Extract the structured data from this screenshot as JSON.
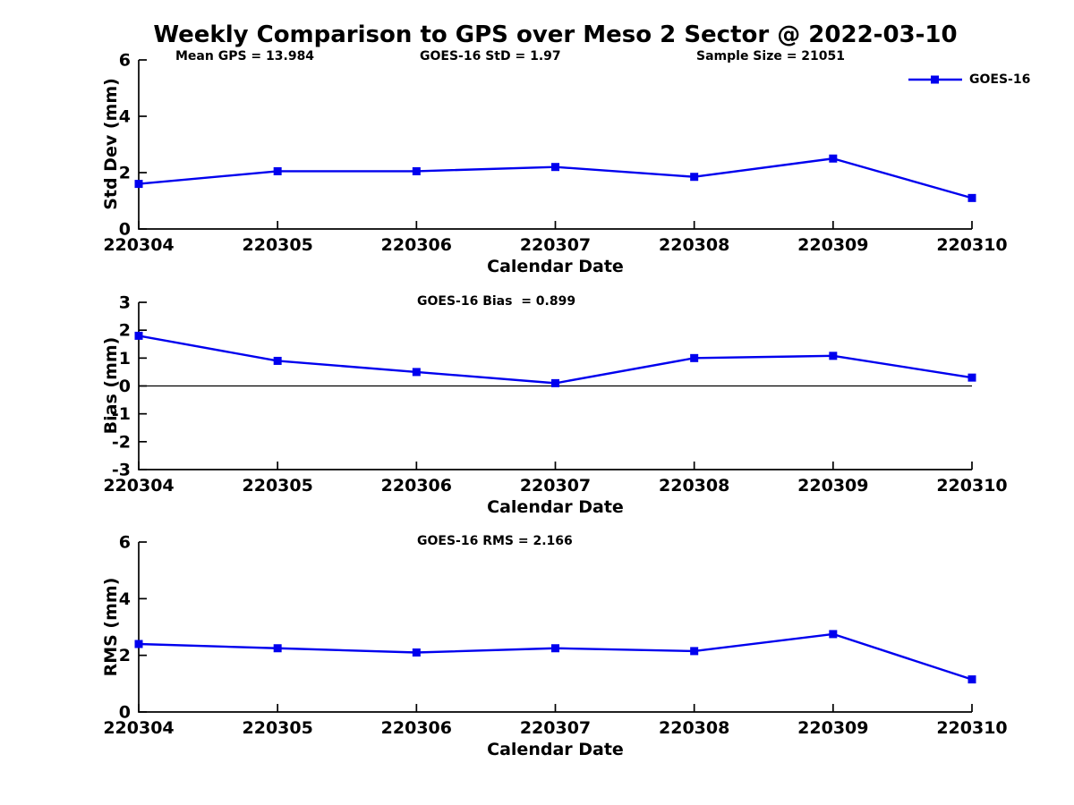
{
  "title": "Weekly Comparison to GPS over Meso 2 Sector @ 2022-03-10",
  "legend": {
    "label": "GOES-16",
    "color": "#0000ee"
  },
  "chart_data": [
    {
      "id": "std-dev",
      "type": "line",
      "series_name": "GOES-16",
      "categories": [
        "220304",
        "220305",
        "220306",
        "220307",
        "220308",
        "220309",
        "220310"
      ],
      "values": [
        1.6,
        2.05,
        2.05,
        2.2,
        1.85,
        2.5,
        1.1
      ],
      "xlabel": "Calendar Date",
      "ylabel": "Std Dev (mm)",
      "ylim": [
        0,
        6
      ],
      "yticks": [
        0,
        2,
        4,
        6
      ],
      "zero_line": false,
      "grid": false,
      "line_color": "#0000ee",
      "marker": "square",
      "legend_position": "top-right",
      "annotations": [
        "Mean GPS = 13.984",
        "GOES-16 StD = 1.97",
        "Sample Size = 21051"
      ]
    },
    {
      "id": "bias",
      "type": "line",
      "series_name": "GOES-16",
      "categories": [
        "220304",
        "220305",
        "220306",
        "220307",
        "220308",
        "220309",
        "220310"
      ],
      "values": [
        1.8,
        0.9,
        0.5,
        0.1,
        1.0,
        1.08,
        0.3
      ],
      "xlabel": "Calendar Date",
      "ylabel": "Bias (mm)",
      "ylim": [
        -3,
        3
      ],
      "yticks": [
        3,
        2,
        1,
        0,
        -1,
        -2,
        -3
      ],
      "zero_line": true,
      "grid": false,
      "line_color": "#0000ee",
      "marker": "square",
      "annotations": [
        "GOES-16 Bias  = 0.899"
      ]
    },
    {
      "id": "rms",
      "type": "line",
      "series_name": "GOES-16",
      "categories": [
        "220304",
        "220305",
        "220306",
        "220307",
        "220308",
        "220309",
        "220310"
      ],
      "values": [
        2.4,
        2.25,
        2.1,
        2.25,
        2.15,
        2.75,
        1.15
      ],
      "xlabel": "Calendar Date",
      "ylabel": "RMS (mm)",
      "ylim": [
        0,
        6
      ],
      "yticks": [
        0,
        2,
        4,
        6
      ],
      "zero_line": false,
      "grid": false,
      "line_color": "#0000ee",
      "marker": "square",
      "annotations": [
        "GOES-16 RMS = 2.166"
      ]
    }
  ]
}
